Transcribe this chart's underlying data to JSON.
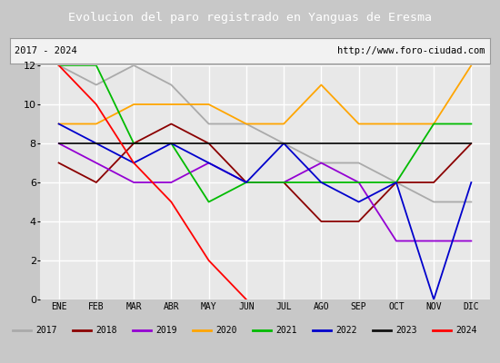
{
  "title": "Evolucion del paro registrado en Yanguas de Eresma",
  "subtitle_left": "2017 - 2024",
  "subtitle_right": "http://www.foro-ciudad.com",
  "month_labels": [
    "ENE",
    "FEB",
    "MAR",
    "ABR",
    "MAY",
    "JUN",
    "JUL",
    "AGO",
    "SEP",
    "OCT",
    "NOV",
    "DIC"
  ],
  "ylim": [
    0,
    12
  ],
  "yticks": [
    0,
    2,
    4,
    6,
    8,
    10,
    12
  ],
  "series": {
    "2017": {
      "color": "#aaaaaa",
      "values": [
        12,
        11,
        12,
        11,
        9,
        9,
        8,
        7,
        7,
        6,
        5,
        5
      ]
    },
    "2018": {
      "color": "#8b0000",
      "values": [
        7,
        6,
        8,
        9,
        8,
        6,
        6,
        4,
        4,
        6,
        6,
        8
      ]
    },
    "2019": {
      "color": "#9400d3",
      "values": [
        8,
        7,
        6,
        6,
        7,
        6,
        6,
        7,
        6,
        3,
        3,
        3
      ]
    },
    "2020": {
      "color": "#ffa500",
      "values": [
        9,
        9,
        10,
        10,
        10,
        9,
        9,
        11,
        9,
        9,
        9,
        12
      ]
    },
    "2021": {
      "color": "#00bb00",
      "values": [
        12,
        12,
        8,
        8,
        5,
        6,
        6,
        6,
        6,
        6,
        9,
        9
      ]
    },
    "2022": {
      "color": "#0000cc",
      "values": [
        9,
        8,
        7,
        8,
        7,
        6,
        8,
        6,
        5,
        6,
        0,
        6
      ]
    },
    "2023": {
      "color": "#111111",
      "values": [
        8,
        8,
        8,
        8,
        8,
        8,
        8,
        8,
        8,
        8,
        8,
        8
      ]
    },
    "2024": {
      "color": "#ff0000",
      "values": [
        12,
        10,
        7,
        5,
        2,
        0,
        null,
        null,
        null,
        null,
        null,
        null
      ]
    }
  },
  "legend_order": [
    "2017",
    "2018",
    "2019",
    "2020",
    "2021",
    "2022",
    "2023",
    "2024"
  ],
  "title_bg": "#4d86c8",
  "title_fg": "#ffffff",
  "plot_bg": "#e8e8e8",
  "outer_bg": "#c8c8c8",
  "info_bg": "#f2f2f2",
  "legend_bg": "#f2f2f2",
  "grid_color": "#ffffff",
  "border_color": "#999999"
}
